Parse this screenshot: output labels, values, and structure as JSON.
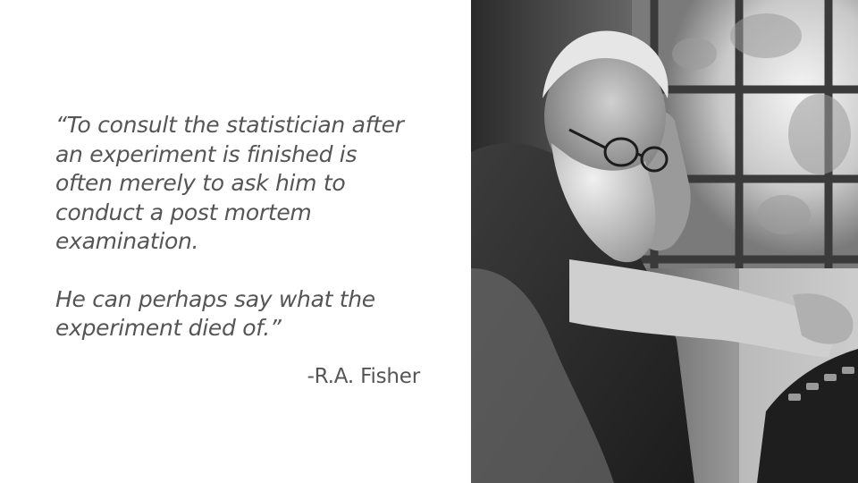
{
  "quote": {
    "paragraph_1_lines": [
      "“To consult the statistician after",
      "an experiment is finished is",
      "often merely to ask him to",
      "conduct a post mortem",
      "examination."
    ],
    "paragraph_2_lines": [
      "He can perhaps say what the",
      "experiment died of.”"
    ]
  },
  "attribution": "-R.A. Fisher",
  "photo": {
    "subject": "R.A. Fisher portrait photograph",
    "palette": [
      "#1a1a1a",
      "#4a4a4a",
      "#8a8a8a",
      "#cfcfcf",
      "#f2f2f2"
    ]
  }
}
